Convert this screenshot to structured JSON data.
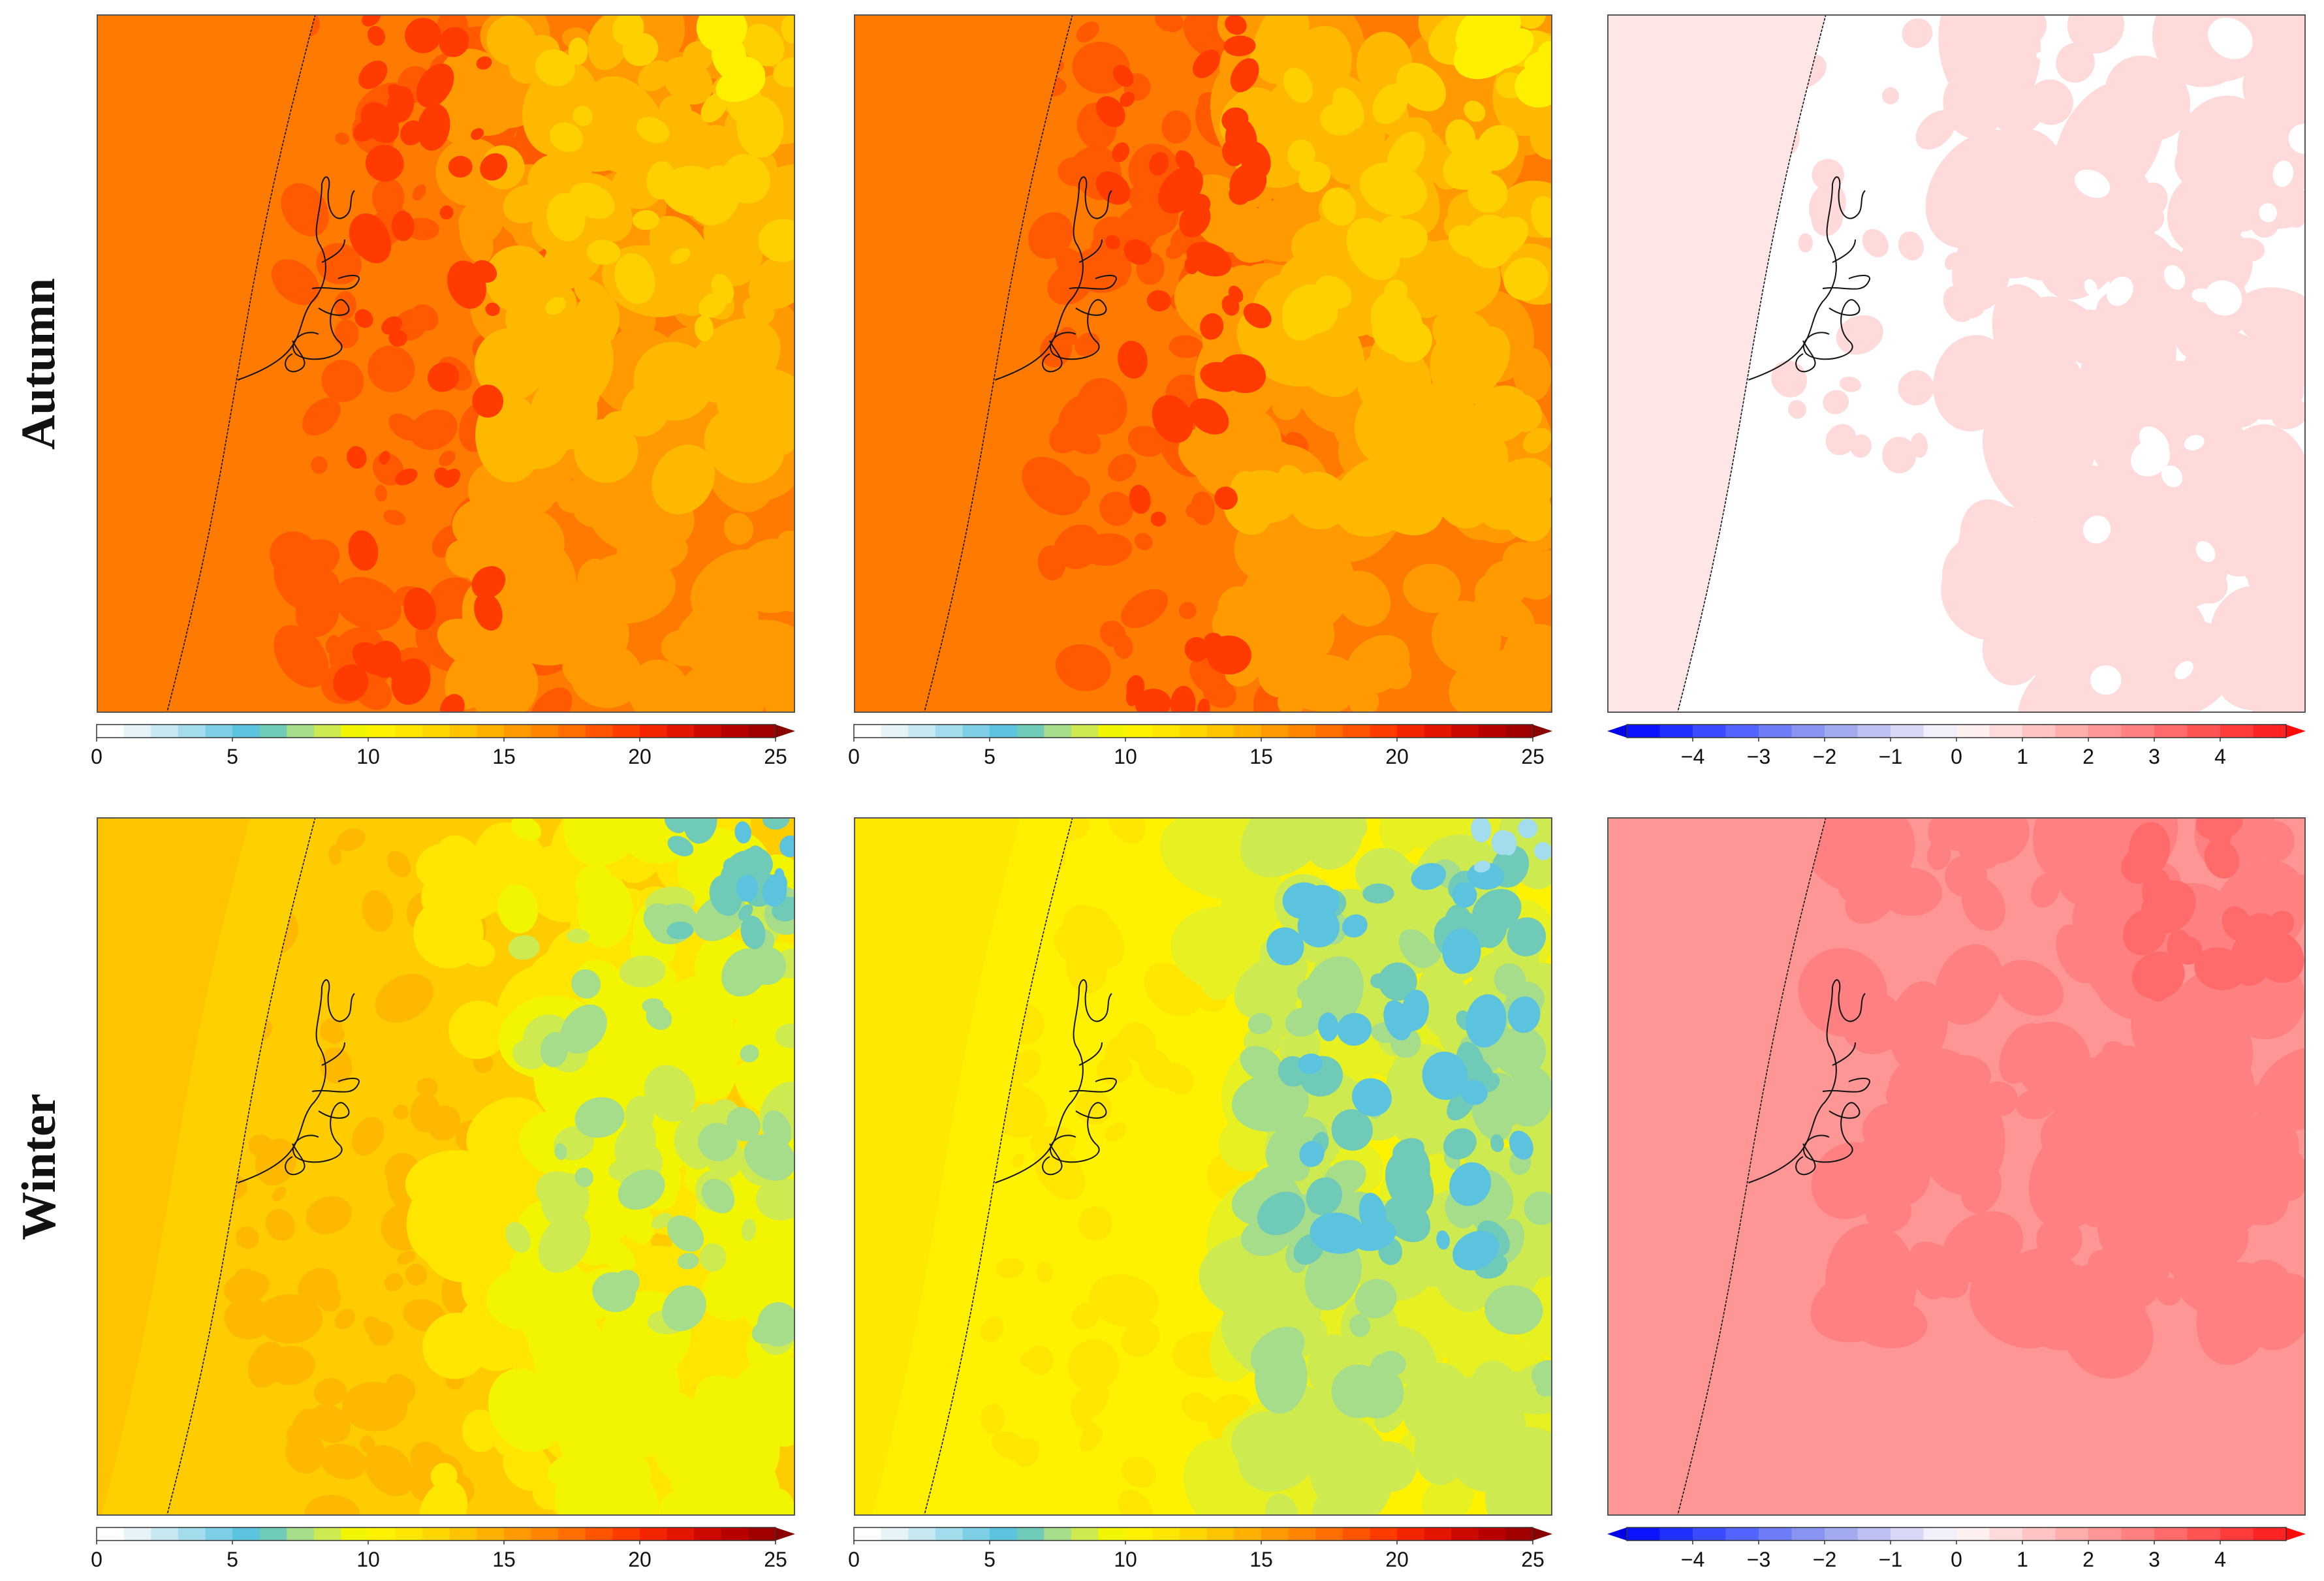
{
  "rows": [
    {
      "label": "Autumn"
    },
    {
      "label": "Winter"
    }
  ],
  "panels": [
    {
      "id": "autumn-a",
      "palette": "abs",
      "field": "autumn_abs_1"
    },
    {
      "id": "autumn-b",
      "palette": "abs",
      "field": "autumn_abs_2"
    },
    {
      "id": "autumn-diff",
      "palette": "diff",
      "field": "autumn_diff"
    },
    {
      "id": "winter-a",
      "palette": "abs",
      "field": "winter_abs_1"
    },
    {
      "id": "winter-b",
      "palette": "abs",
      "field": "winter_abs_2"
    },
    {
      "id": "winter-diff",
      "palette": "diff",
      "field": "winter_diff"
    }
  ],
  "colorbars": {
    "abs": {
      "min": 0,
      "max": 25,
      "extend": "max",
      "ticks": [
        "0",
        "5",
        "10",
        "15",
        "20",
        "25"
      ],
      "colors": [
        "#ffffff",
        "#e6f4f8",
        "#c6e9f1",
        "#a3dcec",
        "#7ccfe4",
        "#5bc3de",
        "#6fcab8",
        "#a6dd8a",
        "#cdea50",
        "#f2f500",
        "#fff200",
        "#ffe600",
        "#ffd600",
        "#ffc400",
        "#ffb000",
        "#ff9a00",
        "#ff8400",
        "#ff6e00",
        "#ff5500",
        "#ff3b00",
        "#f52400",
        "#e31400",
        "#cc0a00",
        "#b80000",
        "#a00000"
      ],
      "extend_color": "#8a0000"
    },
    "diff": {
      "min": -5,
      "max": 5,
      "extend": "both",
      "ticks": [
        "−4",
        "−3",
        "−2",
        "−1",
        "0",
        "1",
        "2",
        "3",
        "4"
      ],
      "tick_values": [
        -4,
        -3,
        -2,
        -1,
        0,
        1,
        2,
        3,
        4
      ],
      "colors": [
        "#0a14ff",
        "#2030ff",
        "#3a4cff",
        "#5464ff",
        "#6e7cf5",
        "#8894f0",
        "#a2aaf0",
        "#bcc0f2",
        "#d6d8f6",
        "#f0f0fb",
        "#fff0f0",
        "#ffdada",
        "#ffc4c4",
        "#ffadad",
        "#ff9696",
        "#ff8080",
        "#ff6a6a",
        "#ff5353",
        "#ff3c3c",
        "#ff2424"
      ],
      "extend_low_color": "#0000e6",
      "extend_high_color": "#ff0a0a"
    }
  },
  "legend_colors": {
    "sea_autumn": "#ff7a00",
    "sea_winter_a": "#ffc000",
    "sea_winter_b": "#ffe000",
    "coastline": "#111111",
    "frame": "#555555"
  }
}
